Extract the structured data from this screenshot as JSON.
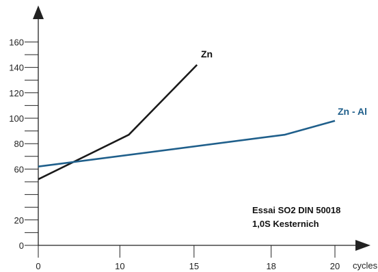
{
  "chart_data": {
    "type": "line",
    "xlabel": "cycles",
    "ylabel": "",
    "xlim": [
      0,
      22
    ],
    "ylim": [
      0,
      175
    ],
    "x_ticks": [
      {
        "value": 0,
        "label": "0"
      },
      {
        "value": 5.5,
        "label": "10"
      },
      {
        "value": 10.5,
        "label": "15"
      },
      {
        "value": 15.7,
        "label": "18"
      },
      {
        "value": 20,
        "label": "20"
      }
    ],
    "y_ticks": [
      {
        "value": 0,
        "label": "0"
      },
      {
        "value": 10,
        "label": ""
      },
      {
        "value": 20,
        "label": "20"
      },
      {
        "value": 30,
        "label": ""
      },
      {
        "value": 40,
        "label": ""
      },
      {
        "value": 50,
        "label": ""
      },
      {
        "value": 60,
        "label": "60"
      },
      {
        "value": 70,
        "label": ""
      },
      {
        "value": 80,
        "label": "80"
      },
      {
        "value": 90,
        "label": ""
      },
      {
        "value": 100,
        "label": "100"
      },
      {
        "value": 110,
        "label": ""
      },
      {
        "value": 120,
        "label": "120"
      },
      {
        "value": 130,
        "label": ""
      },
      {
        "value": 140,
        "label": "140"
      },
      {
        "value": 150,
        "label": ""
      },
      {
        "value": 160,
        "label": "160"
      }
    ],
    "series": [
      {
        "name": "Zn",
        "color": "#1a1a1a",
        "points": [
          [
            0,
            52
          ],
          [
            6.1,
            87
          ],
          [
            10.7,
            142
          ]
        ]
      },
      {
        "name": "Zn - Al",
        "color": "#1f5f8b",
        "points": [
          [
            0,
            62
          ],
          [
            16.6,
            87
          ],
          [
            20,
            98
          ]
        ]
      }
    ],
    "annotation": [
      "Essai SO2 DIN 50018",
      "1,0S Kesternich"
    ],
    "grid": false
  }
}
